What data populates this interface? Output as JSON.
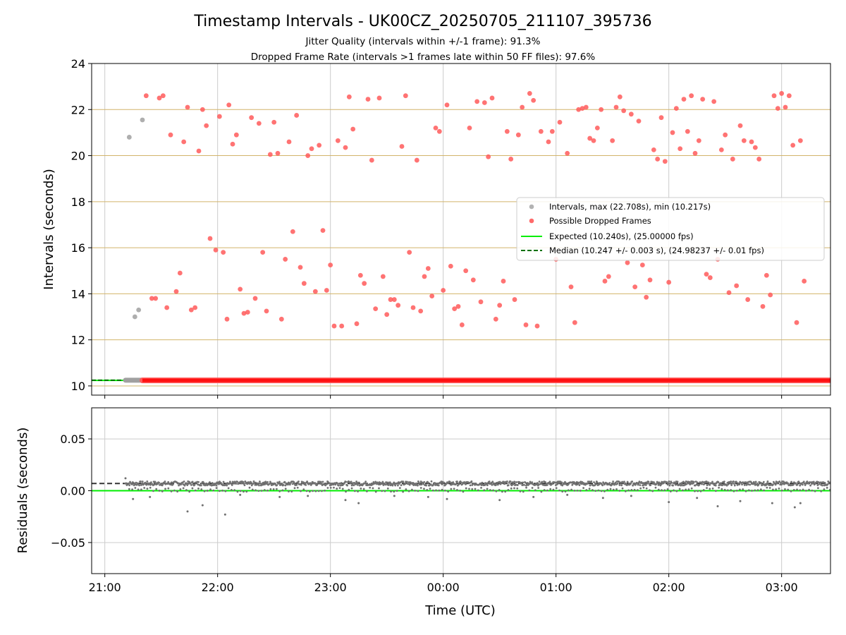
{
  "chart_data": [
    {
      "type": "scatter",
      "title": "Timestamp Intervals - UK00CZ_20250705_211107_395736",
      "subtitle": [
        "Jitter Quality (intervals within +/-1 frame): 91.3%",
        "Dropped Frame Rate (intervals >1 frames late within 50 FF files): 97.6%"
      ],
      "xlabel": "",
      "ylabel": "Intervals (seconds)",
      "xlim": [
        "20:53",
        "03:26"
      ],
      "ylim": [
        9.6,
        24
      ],
      "yticks": [
        10,
        12,
        14,
        16,
        18,
        20,
        22,
        24
      ],
      "ytick_labels": [
        "10",
        "12",
        "14",
        "16",
        "18",
        "20",
        "22",
        "24"
      ],
      "grid": "on",
      "legend_position": "center-right",
      "colors": {
        "intervals": "#a0a0a0",
        "dropped": "#ff5a5a",
        "expected": "#00ee00",
        "median": "#007000",
        "ygrid": "#d2b46a",
        "xgrid": "#cccccc"
      },
      "legend": [
        "Intervals, max (22.708s), min (10.217s)",
        "Possible Dropped Frames",
        "Expected (10.240s), (25.00000 fps)",
        "Median (10.247 +/- 0.003 s), (24.98237 +/- 0.01 fps)"
      ],
      "series": [
        {
          "name": "Intervals, max (22.708s), min (10.217s)",
          "points": [
            [
              "21:13",
              20.8
            ],
            [
              "21:16",
              13.0
            ],
            [
              "21:18",
              13.3
            ],
            [
              "21:20",
              21.55
            ]
          ],
          "baseline": {
            "x_start": "21:11",
            "x_end": "21:20",
            "y": 10.247
          }
        },
        {
          "name": "Possible Dropped Frames",
          "baseline": {
            "x_start": "21:20",
            "x_end": "03:26",
            "y": 10.24
          },
          "points": [
            [
              "21:22",
              22.6
            ],
            [
              "21:25",
              13.8
            ],
            [
              "21:27",
              13.8
            ],
            [
              "21:29",
              22.5
            ],
            [
              "21:31",
              22.6
            ],
            [
              "21:33",
              13.4
            ],
            [
              "21:35",
              20.9
            ],
            [
              "21:38",
              14.1
            ],
            [
              "21:40",
              14.9
            ],
            [
              "21:42",
              20.6
            ],
            [
              "21:44",
              22.1
            ],
            [
              "21:46",
              13.3
            ],
            [
              "21:48",
              13.4
            ],
            [
              "21:50",
              20.2
            ],
            [
              "21:52",
              22.0
            ],
            [
              "21:54",
              21.3
            ],
            [
              "21:56",
              16.4
            ],
            [
              "21:59",
              15.9
            ],
            [
              "22:01",
              21.7
            ],
            [
              "22:03",
              15.8
            ],
            [
              "22:05",
              12.9
            ],
            [
              "22:06",
              22.2
            ],
            [
              "22:08",
              20.5
            ],
            [
              "22:10",
              20.9
            ],
            [
              "22:12",
              14.2
            ],
            [
              "22:14",
              13.15
            ],
            [
              "22:16",
              13.2
            ],
            [
              "22:18",
              21.65
            ],
            [
              "22:20",
              13.8
            ],
            [
              "22:22",
              21.4
            ],
            [
              "22:24",
              15.8
            ],
            [
              "22:26",
              13.25
            ],
            [
              "22:28",
              20.05
            ],
            [
              "22:30",
              21.45
            ],
            [
              "22:32",
              20.1
            ],
            [
              "22:34",
              12.9
            ],
            [
              "22:36",
              15.5
            ],
            [
              "22:38",
              20.6
            ],
            [
              "22:40",
              16.7
            ],
            [
              "22:42",
              21.75
            ],
            [
              "22:44",
              15.15
            ],
            [
              "22:46",
              14.45
            ],
            [
              "22:48",
              20.0
            ],
            [
              "22:50",
              20.3
            ],
            [
              "22:52",
              14.1
            ],
            [
              "22:54",
              20.45
            ],
            [
              "22:56",
              16.75
            ],
            [
              "22:58",
              14.15
            ],
            [
              "23:00",
              15.25
            ],
            [
              "23:02",
              12.6
            ],
            [
              "23:04",
              20.65
            ],
            [
              "23:06",
              12.6
            ],
            [
              "23:08",
              20.35
            ],
            [
              "23:10",
              22.55
            ],
            [
              "23:12",
              21.15
            ],
            [
              "23:14",
              12.7
            ],
            [
              "23:16",
              14.8
            ],
            [
              "23:18",
              14.45
            ],
            [
              "23:20",
              22.45
            ],
            [
              "23:22",
              19.8
            ],
            [
              "23:24",
              13.35
            ],
            [
              "23:26",
              22.5
            ],
            [
              "23:28",
              14.75
            ],
            [
              "23:30",
              13.1
            ],
            [
              "23:32",
              13.75
            ],
            [
              "23:34",
              13.75
            ],
            [
              "23:36",
              13.5
            ],
            [
              "23:38",
              20.4
            ],
            [
              "23:40",
              22.6
            ],
            [
              "23:42",
              15.8
            ],
            [
              "23:44",
              13.4
            ],
            [
              "23:46",
              19.8
            ],
            [
              "23:48",
              13.25
            ],
            [
              "23:50",
              14.75
            ],
            [
              "23:52",
              15.1
            ],
            [
              "23:54",
              13.9
            ],
            [
              "23:56",
              21.2
            ],
            [
              "23:58",
              21.05
            ],
            [
              "00:00",
              14.15
            ],
            [
              "00:02",
              22.2
            ],
            [
              "00:04",
              15.2
            ],
            [
              "00:06",
              13.35
            ],
            [
              "00:08",
              13.45
            ],
            [
              "00:10",
              12.65
            ],
            [
              "00:12",
              15.0
            ],
            [
              "00:14",
              21.2
            ],
            [
              "00:16",
              14.6
            ],
            [
              "00:18",
              22.35
            ],
            [
              "00:20",
              13.65
            ],
            [
              "00:22",
              22.3
            ],
            [
              "00:24",
              19.95
            ],
            [
              "00:26",
              22.5
            ],
            [
              "00:28",
              12.9
            ],
            [
              "00:30",
              13.5
            ],
            [
              "00:32",
              14.55
            ],
            [
              "00:34",
              21.05
            ],
            [
              "00:36",
              19.85
            ],
            [
              "00:38",
              13.75
            ],
            [
              "00:40",
              20.9
            ],
            [
              "00:42",
              22.1
            ],
            [
              "00:44",
              12.65
            ],
            [
              "00:46",
              22.7
            ],
            [
              "00:48",
              22.4
            ],
            [
              "00:50",
              12.6
            ],
            [
              "00:52",
              21.05
            ],
            [
              "00:56",
              20.6
            ],
            [
              "00:58",
              21.05
            ],
            [
              "01:00",
              15.5
            ],
            [
              "01:02",
              21.45
            ],
            [
              "01:06",
              20.1
            ],
            [
              "01:08",
              14.3
            ],
            [
              "01:10",
              12.75
            ],
            [
              "01:12",
              22.0
            ],
            [
              "01:14",
              22.05
            ],
            [
              "01:16",
              22.1
            ],
            [
              "01:18",
              20.75
            ],
            [
              "01:20",
              20.65
            ],
            [
              "01:22",
              21.2
            ],
            [
              "01:24",
              22.0
            ],
            [
              "01:26",
              14.55
            ],
            [
              "01:28",
              14.75
            ],
            [
              "01:30",
              20.65
            ],
            [
              "01:32",
              22.1
            ],
            [
              "01:34",
              22.55
            ],
            [
              "01:36",
              21.95
            ],
            [
              "01:38",
              15.35
            ],
            [
              "01:40",
              21.8
            ],
            [
              "01:42",
              14.3
            ],
            [
              "01:44",
              21.5
            ],
            [
              "01:46",
              15.25
            ],
            [
              "01:48",
              13.85
            ],
            [
              "01:50",
              14.6
            ],
            [
              "01:52",
              20.25
            ],
            [
              "01:54",
              19.85
            ],
            [
              "01:56",
              21.65
            ],
            [
              "01:58",
              19.75
            ],
            [
              "02:00",
              14.5
            ],
            [
              "02:02",
              21.0
            ],
            [
              "02:04",
              22.05
            ],
            [
              "02:06",
              20.3
            ],
            [
              "02:08",
              22.45
            ],
            [
              "02:10",
              21.05
            ],
            [
              "02:12",
              22.6
            ],
            [
              "02:14",
              20.1
            ],
            [
              "02:16",
              20.65
            ],
            [
              "02:18",
              22.45
            ],
            [
              "02:20",
              14.85
            ],
            [
              "02:22",
              14.7
            ],
            [
              "02:24",
              22.35
            ],
            [
              "02:26",
              15.5
            ],
            [
              "02:28",
              20.25
            ],
            [
              "02:30",
              20.9
            ],
            [
              "02:32",
              14.05
            ],
            [
              "02:34",
              19.85
            ],
            [
              "02:36",
              14.35
            ],
            [
              "02:38",
              21.3
            ],
            [
              "02:40",
              20.65
            ],
            [
              "02:42",
              13.75
            ],
            [
              "02:44",
              20.6
            ],
            [
              "02:46",
              20.35
            ],
            [
              "02:48",
              19.85
            ],
            [
              "02:50",
              13.45
            ],
            [
              "02:52",
              14.8
            ],
            [
              "02:54",
              13.95
            ],
            [
              "02:56",
              22.6
            ],
            [
              "02:58",
              22.05
            ],
            [
              "03:00",
              22.7
            ],
            [
              "03:02",
              22.1
            ],
            [
              "03:04",
              22.6
            ],
            [
              "03:06",
              20.45
            ],
            [
              "03:08",
              12.75
            ],
            [
              "03:10",
              20.65
            ],
            [
              "03:12",
              14.55
            ]
          ]
        },
        {
          "name": "Expected (10.240s), (25.00000 fps)",
          "type": "line",
          "y": 10.24
        },
        {
          "name": "Median (10.247 +/- 0.003 s), (24.98237 +/- 0.01 fps)",
          "type": "line",
          "y": 10.247
        }
      ]
    },
    {
      "type": "scatter",
      "xlabel": "Time (UTC)",
      "ylabel": "Residuals (seconds)",
      "xlim": [
        "20:53",
        "03:26"
      ],
      "ylim": [
        -0.08,
        0.08
      ],
      "yticks": [
        -0.05,
        0,
        0.05
      ],
      "ytick_labels": [
        "−0.05",
        "0.00",
        "0.05"
      ],
      "xticks": [
        "21:00",
        "22:00",
        "23:00",
        "00:00",
        "01:00",
        "02:00",
        "03:00"
      ],
      "xtick_labels": [
        "21:00",
        "22:00",
        "23:00",
        "00:00",
        "01:00",
        "02:00",
        "03:00"
      ],
      "grid": "on",
      "series": [
        {
          "name": "Residuals",
          "band": {
            "center": 0.007,
            "spread": 0.002
          },
          "outliers": [
            [
              "21:11",
              0.012
            ],
            [
              "21:15",
              -0.008
            ],
            [
              "21:24",
              -0.006
            ],
            [
              "21:44",
              -0.02
            ],
            [
              "21:52",
              -0.014
            ],
            [
              "22:04",
              -0.023
            ],
            [
              "22:12",
              -0.004
            ],
            [
              "22:33",
              -0.006
            ],
            [
              "22:48",
              -0.005
            ],
            [
              "23:08",
              -0.009
            ],
            [
              "23:15",
              -0.012
            ],
            [
              "23:34",
              -0.005
            ],
            [
              "23:52",
              -0.006
            ],
            [
              "00:02",
              -0.008
            ],
            [
              "00:30",
              -0.009
            ],
            [
              "00:48",
              -0.006
            ],
            [
              "01:06",
              -0.004
            ],
            [
              "01:25",
              -0.007
            ],
            [
              "01:40",
              -0.005
            ],
            [
              "02:00",
              -0.011
            ],
            [
              "02:15",
              -0.007
            ],
            [
              "02:26",
              -0.015
            ],
            [
              "02:38",
              -0.01
            ],
            [
              "02:55",
              -0.012
            ],
            [
              "03:07",
              -0.016
            ],
            [
              "03:10",
              -0.012
            ]
          ]
        },
        {
          "name": "Expected",
          "type": "line",
          "y": 0
        },
        {
          "name": "Median",
          "type": "line",
          "y": 0.007
        }
      ]
    }
  ]
}
